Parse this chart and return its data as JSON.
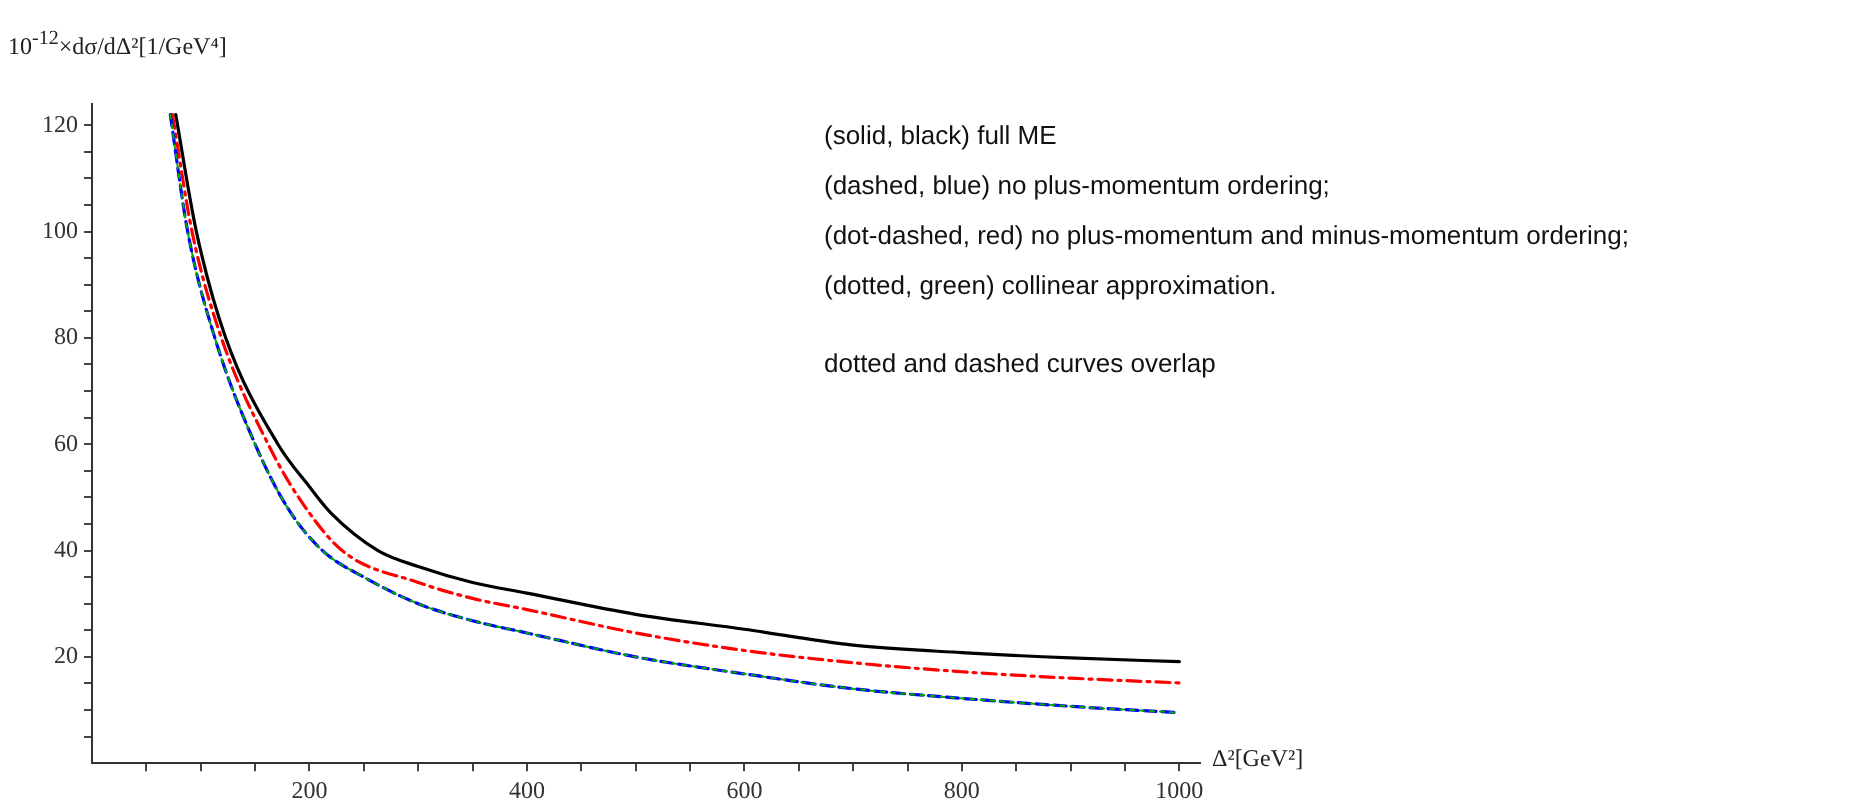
{
  "chart_data": {
    "type": "line",
    "ylabel": "10$^{-12}$×dσ/dΔ²[1/GeV⁴]",
    "xlabel": "Δ²[GeV²]",
    "xlim": [
      0,
      1019
    ],
    "ylim": [
      0,
      124
    ],
    "xticks": [
      {
        "value": 50,
        "label": null
      },
      {
        "value": 100,
        "label": null
      },
      {
        "value": 150,
        "label": null
      },
      200,
      {
        "value": 250,
        "label": null
      },
      {
        "value": 300,
        "label": null
      },
      {
        "value": 350,
        "label": null
      },
      400,
      {
        "value": 450,
        "label": null
      },
      {
        "value": 500,
        "label": null
      },
      {
        "value": 550,
        "label": null
      },
      600,
      {
        "value": 650,
        "label": null
      },
      {
        "value": 700,
        "label": null
      },
      {
        "value": 750,
        "label": null
      },
      800,
      {
        "value": 850,
        "label": null
      },
      {
        "value": 900,
        "label": null
      },
      {
        "value": 950,
        "label": null
      },
      1000
    ],
    "yticks": [
      {
        "value": 5,
        "label": null
      },
      {
        "value": 10,
        "label": null
      },
      {
        "value": 15,
        "label": null
      },
      20,
      {
        "value": 25,
        "label": null
      },
      {
        "value": 30,
        "label": null
      },
      {
        "value": 35,
        "label": null
      },
      40,
      {
        "value": 45,
        "label": null
      },
      {
        "value": 50,
        "label": null
      },
      {
        "value": 55,
        "label": null
      },
      60,
      {
        "value": 65,
        "label": null
      },
      {
        "value": 70,
        "label": null
      },
      {
        "value": 75,
        "label": null
      },
      80,
      {
        "value": 85,
        "label": null
      },
      {
        "value": 90,
        "label": null
      },
      {
        "value": 95,
        "label": null
      },
      100,
      {
        "value": 105,
        "label": null
      },
      {
        "value": 110,
        "label": null
      },
      {
        "value": 115,
        "label": null
      },
      120
    ],
    "grid": false,
    "legend": false,
    "marker": "none",
    "series": [
      {
        "color": "#000000",
        "line_style": "solid",
        "x": [
          77,
          96,
          123,
          171,
          200,
          220,
          263,
          300,
          350,
          400,
          500,
          600,
          700,
          800,
          900,
          1000
        ],
        "values": [
          122,
          100,
          80,
          60,
          52,
          47,
          40,
          37,
          34,
          32,
          28,
          25.2,
          22.2,
          20.8,
          19.8,
          19.1
        ]
      },
      {
        "color": "#ff0000",
        "line_style": "dashdot",
        "x": [
          74,
          92,
          119,
          162,
          190,
          230,
          300,
          350,
          400,
          500,
          600,
          700,
          800,
          900,
          1000
        ],
        "values": [
          122,
          100,
          80,
          60,
          50,
          40,
          34,
          31,
          28.9,
          24.5,
          21.2,
          18.9,
          17.2,
          16,
          15.1
        ]
      },
      {
        "color": "#0000ff",
        "line_style": "dashed",
        "x": [
          72,
          88,
          113,
          150,
          180,
          212,
          250,
          300,
          350,
          400,
          500,
          600,
          700,
          800,
          900,
          1000
        ],
        "values": [
          122,
          100,
          80,
          60,
          48,
          40,
          35,
          30,
          26.8,
          24.5,
          20,
          16.8,
          14,
          12.2,
          10.7,
          9.5
        ]
      },
      {
        "color": "#00aa00",
        "line_style": "dotted",
        "x": [
          72,
          88,
          113,
          150,
          180,
          212,
          250,
          300,
          350,
          400,
          500,
          600,
          700,
          800,
          900,
          1000
        ],
        "values": [
          122,
          100,
          80,
          60,
          48,
          40,
          35,
          30,
          26.8,
          24.5,
          20,
          16.8,
          14,
          12.2,
          10.7,
          9.5
        ]
      }
    ],
    "annotations": [
      "(solid, black) full ME",
      "(dashed, blue) no plus-momentum ordering;",
      "(dot-dashed, red) no plus-momentum and minus-momentum ordering;",
      "(dotted, green) collinear approximation.",
      "dotted and dashed curves overlap"
    ]
  }
}
